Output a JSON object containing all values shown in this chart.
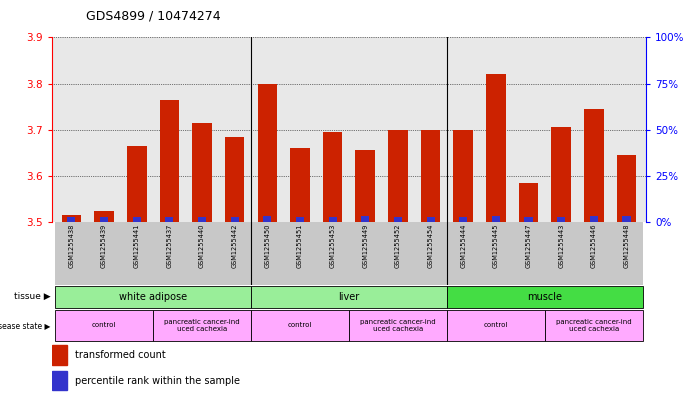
{
  "title": "GDS4899 / 10474274",
  "samples": [
    "GSM1255438",
    "GSM1255439",
    "GSM1255441",
    "GSM1255437",
    "GSM1255440",
    "GSM1255442",
    "GSM1255450",
    "GSM1255451",
    "GSM1255453",
    "GSM1255449",
    "GSM1255452",
    "GSM1255454",
    "GSM1255444",
    "GSM1255445",
    "GSM1255447",
    "GSM1255443",
    "GSM1255446",
    "GSM1255448"
  ],
  "transformed_count": [
    3.515,
    3.525,
    3.665,
    3.765,
    3.715,
    3.685,
    3.8,
    3.66,
    3.695,
    3.655,
    3.7,
    3.7,
    3.7,
    3.82,
    3.585,
    3.705,
    3.745,
    3.645
  ],
  "percentile_rank": [
    3.0,
    3.0,
    3.0,
    3.0,
    3.0,
    3.0,
    3.5,
    3.0,
    3.0,
    3.5,
    3.0,
    3.0,
    3.0,
    3.5,
    3.0,
    3.0,
    3.5,
    3.5
  ],
  "ylim_left": [
    3.5,
    3.9
  ],
  "ylim_right": [
    0,
    100
  ],
  "yticks_left": [
    3.5,
    3.6,
    3.7,
    3.8,
    3.9
  ],
  "yticks_right": [
    0,
    25,
    50,
    75,
    100
  ],
  "bar_color_red": "#cc2200",
  "bar_color_blue": "#3333cc",
  "bg_color": "#e8e8e8",
  "bar_width": 0.6,
  "blue_bar_width": 0.25,
  "tissue_labels": [
    "white adipose",
    "liver",
    "muscle"
  ],
  "tissue_ranges": [
    [
      0,
      6
    ],
    [
      6,
      12
    ],
    [
      12,
      18
    ]
  ],
  "tissue_colors": [
    "#99ee99",
    "#99ee99",
    "#44dd44"
  ],
  "disease_ranges": [
    [
      0,
      3
    ],
    [
      3,
      6
    ],
    [
      6,
      9
    ],
    [
      9,
      12
    ],
    [
      12,
      15
    ],
    [
      15,
      18
    ]
  ],
  "disease_labels": [
    "control",
    "pancreatic cancer-ind\nuced cachexia",
    "control",
    "pancreatic cancer-ind\nuced cachexia",
    "control",
    "pancreatic cancer-ind\nuced cachexia"
  ],
  "disease_color": "#ffaaff",
  "legend_red": "transformed count",
  "legend_blue": "percentile rank within the sample"
}
